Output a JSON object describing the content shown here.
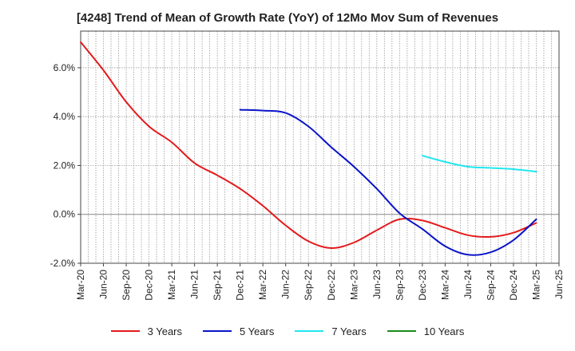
{
  "chart_data": {
    "type": "line",
    "title": "[4248]  Trend of Mean of Growth Rate (YoY) of 12Mo Mov Sum of Revenues",
    "xlabel": "",
    "ylabel": "",
    "ylim": [
      -2.0,
      7.5
    ],
    "y_ticks": [
      -2.0,
      0.0,
      2.0,
      4.0,
      6.0
    ],
    "y_tick_labels": [
      "-2.0%",
      "0.0%",
      "2.0%",
      "4.0%",
      "6.0%"
    ],
    "x_tick_labels": [
      "Mar-20",
      "Jun-20",
      "Sep-20",
      "Dec-20",
      "Mar-21",
      "Jun-21",
      "Sep-21",
      "Dec-21",
      "Mar-22",
      "Jun-22",
      "Sep-22",
      "Dec-22",
      "Mar-23",
      "Jun-23",
      "Sep-23",
      "Dec-23",
      "Mar-24",
      "Jun-24",
      "Sep-24",
      "Dec-24",
      "Mar-25",
      "Jun-25"
    ],
    "grid": true,
    "series": [
      {
        "name": "3 Years",
        "color": "#e31a1c",
        "points": [
          [
            0,
            7.05
          ],
          [
            1,
            5.9
          ],
          [
            2,
            4.6
          ],
          [
            3,
            3.6
          ],
          [
            4,
            2.95
          ],
          [
            5,
            2.1
          ],
          [
            6,
            1.6
          ],
          [
            7,
            1.05
          ],
          [
            8,
            0.35
          ],
          [
            9,
            -0.45
          ],
          [
            10,
            -1.1
          ],
          [
            11,
            -1.38
          ],
          [
            12,
            -1.15
          ],
          [
            13,
            -0.65
          ],
          [
            14,
            -0.2
          ],
          [
            15,
            -0.25
          ],
          [
            16,
            -0.55
          ],
          [
            17,
            -0.85
          ],
          [
            18,
            -0.92
          ],
          [
            19,
            -0.75
          ],
          [
            20,
            -0.35
          ]
        ]
      },
      {
        "name": "5 Years",
        "color": "#0a14c8",
        "points": [
          [
            7,
            4.28
          ],
          [
            8,
            4.25
          ],
          [
            9,
            4.15
          ],
          [
            10,
            3.6
          ],
          [
            11,
            2.75
          ],
          [
            12,
            1.95
          ],
          [
            13,
            1.05
          ],
          [
            14,
            0.05
          ],
          [
            15,
            -0.6
          ],
          [
            16,
            -1.3
          ],
          [
            17,
            -1.65
          ],
          [
            18,
            -1.55
          ],
          [
            19,
            -1.05
          ],
          [
            20,
            -0.2
          ]
        ]
      },
      {
        "name": "7 Years",
        "color": "#22e6f0",
        "points": [
          [
            15,
            2.4
          ],
          [
            16,
            2.15
          ],
          [
            17,
            1.95
          ],
          [
            18,
            1.9
          ],
          [
            19,
            1.85
          ],
          [
            20,
            1.75
          ]
        ]
      },
      {
        "name": "10 Years",
        "color": "#1a8c1a",
        "points": []
      }
    ]
  }
}
